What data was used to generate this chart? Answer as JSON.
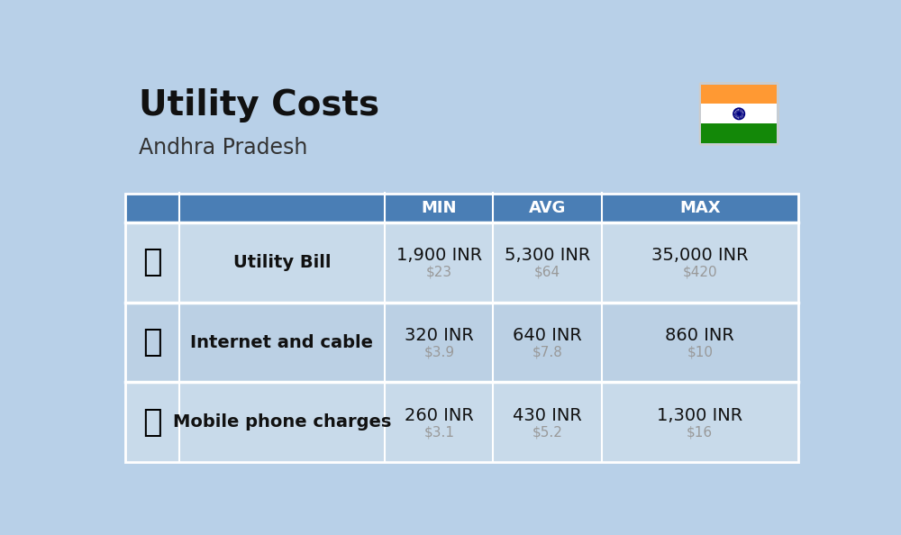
{
  "title": "Utility Costs",
  "subtitle": "Andhra Pradesh",
  "background_color": "#b8d0e8",
  "header_color": "#4a7eb5",
  "header_text_color": "#ffffff",
  "row_colors": [
    "#c8daea",
    "#bbd0e4"
  ],
  "table_border_color": "#ffffff",
  "col_headers": [
    "MIN",
    "AVG",
    "MAX"
  ],
  "rows": [
    {
      "label": "Utility Bill",
      "inr": [
        "1,900 INR",
        "5,300 INR",
        "35,000 INR"
      ],
      "usd": [
        "$23",
        "$64",
        "$420"
      ]
    },
    {
      "label": "Internet and cable",
      "inr": [
        "320 INR",
        "640 INR",
        "860 INR"
      ],
      "usd": [
        "$3.9",
        "$7.8",
        "$10"
      ]
    },
    {
      "label": "Mobile phone charges",
      "inr": [
        "260 INR",
        "430 INR",
        "1,300 INR"
      ],
      "usd": [
        "$3.1",
        "$5.2",
        "$16"
      ]
    }
  ],
  "inr_fontsize": 14,
  "usd_fontsize": 11,
  "usd_color": "#999999",
  "label_fontsize": 14,
  "header_fontsize": 13,
  "title_fontsize": 28,
  "subtitle_fontsize": 17,
  "flag_colors_top_to_bottom": [
    "#FF9933",
    "#FFFFFF",
    "#138808"
  ],
  "chakra_color": "#000080"
}
